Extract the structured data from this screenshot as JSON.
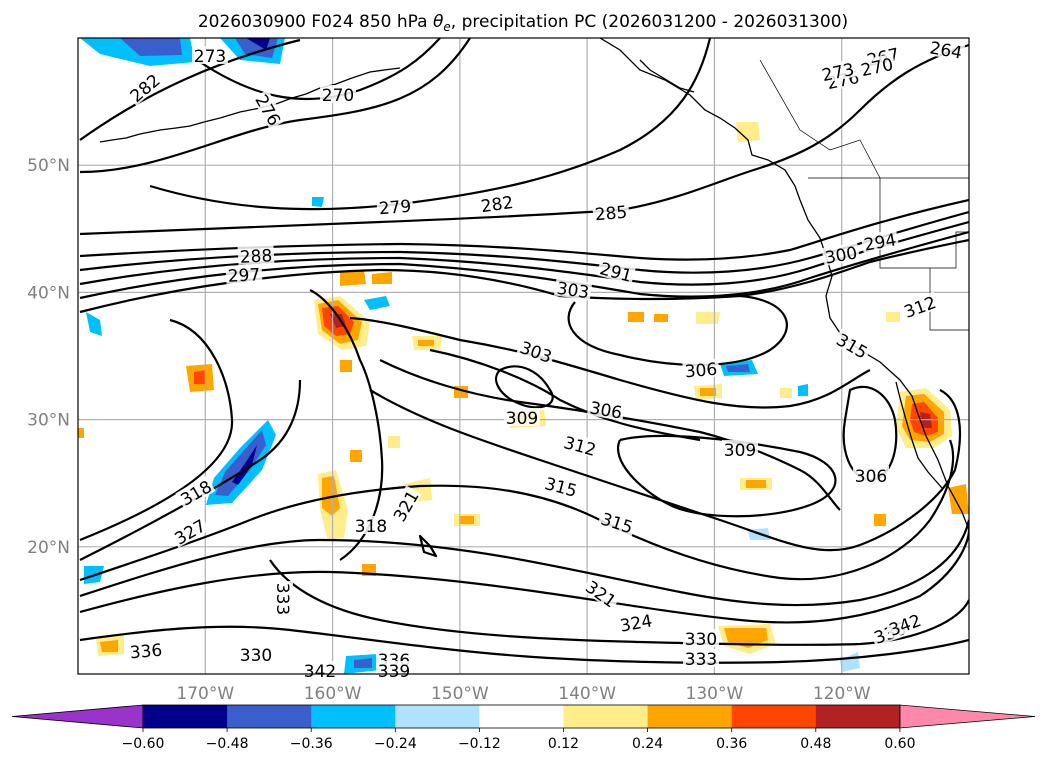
{
  "chart_data": {
    "type": "contour-map",
    "title_parts": {
      "prefix": "2026030900 F024 850 hPa ",
      "theta": "θ",
      "theta_sub": "e",
      "suffix": ", precipitation PC (2026031200 - 2026031300)"
    },
    "map": {
      "lon_range": [
        -180,
        -110
      ],
      "lat_range": [
        10,
        60
      ],
      "lon_ticks": [
        -170,
        -160,
        -150,
        -140,
        -130,
        -120
      ],
      "lon_tick_labels": [
        "170°W",
        "160°W",
        "150°W",
        "140°W",
        "130°W",
        "120°W"
      ],
      "lat_ticks": [
        20,
        30,
        40,
        50
      ],
      "lat_tick_labels": [
        "20°N",
        "30°N",
        "40°N",
        "50°N"
      ],
      "grid": true
    },
    "theta_e_contour_labels": [
      "264",
      "267",
      "270",
      "273",
      "276",
      "270",
      "276",
      "273",
      "282",
      "279",
      "282",
      "285",
      "288",
      "291",
      "294",
      "297",
      "300",
      "303",
      "303",
      "306",
      "306",
      "306",
      "309",
      "309",
      "312",
      "312",
      "315",
      "315",
      "315",
      "318",
      "318",
      "321",
      "321",
      "324",
      "327",
      "330",
      "330",
      "333",
      "333",
      "336",
      "336",
      "336",
      "339",
      "342",
      "342"
    ],
    "precip_colorbar": {
      "tick_values": [
        -0.6,
        -0.48,
        -0.36,
        -0.24,
        -0.12,
        0.12,
        0.24,
        0.36,
        0.48,
        0.6
      ],
      "tick_labels": [
        "−0.60",
        "−0.48",
        "−0.36",
        "−0.24",
        "−0.12",
        "0.12",
        "0.24",
        "0.36",
        "0.48",
        "0.60"
      ],
      "colors": [
        "#9933cc",
        "#00008b",
        "#3a5fcd",
        "#00bfff",
        "#b0e2ff",
        "#ffffff",
        "#ffec8b",
        "#ffa500",
        "#ff4500",
        "#b22222",
        "#ff88aa"
      ],
      "extend": "both"
    }
  }
}
